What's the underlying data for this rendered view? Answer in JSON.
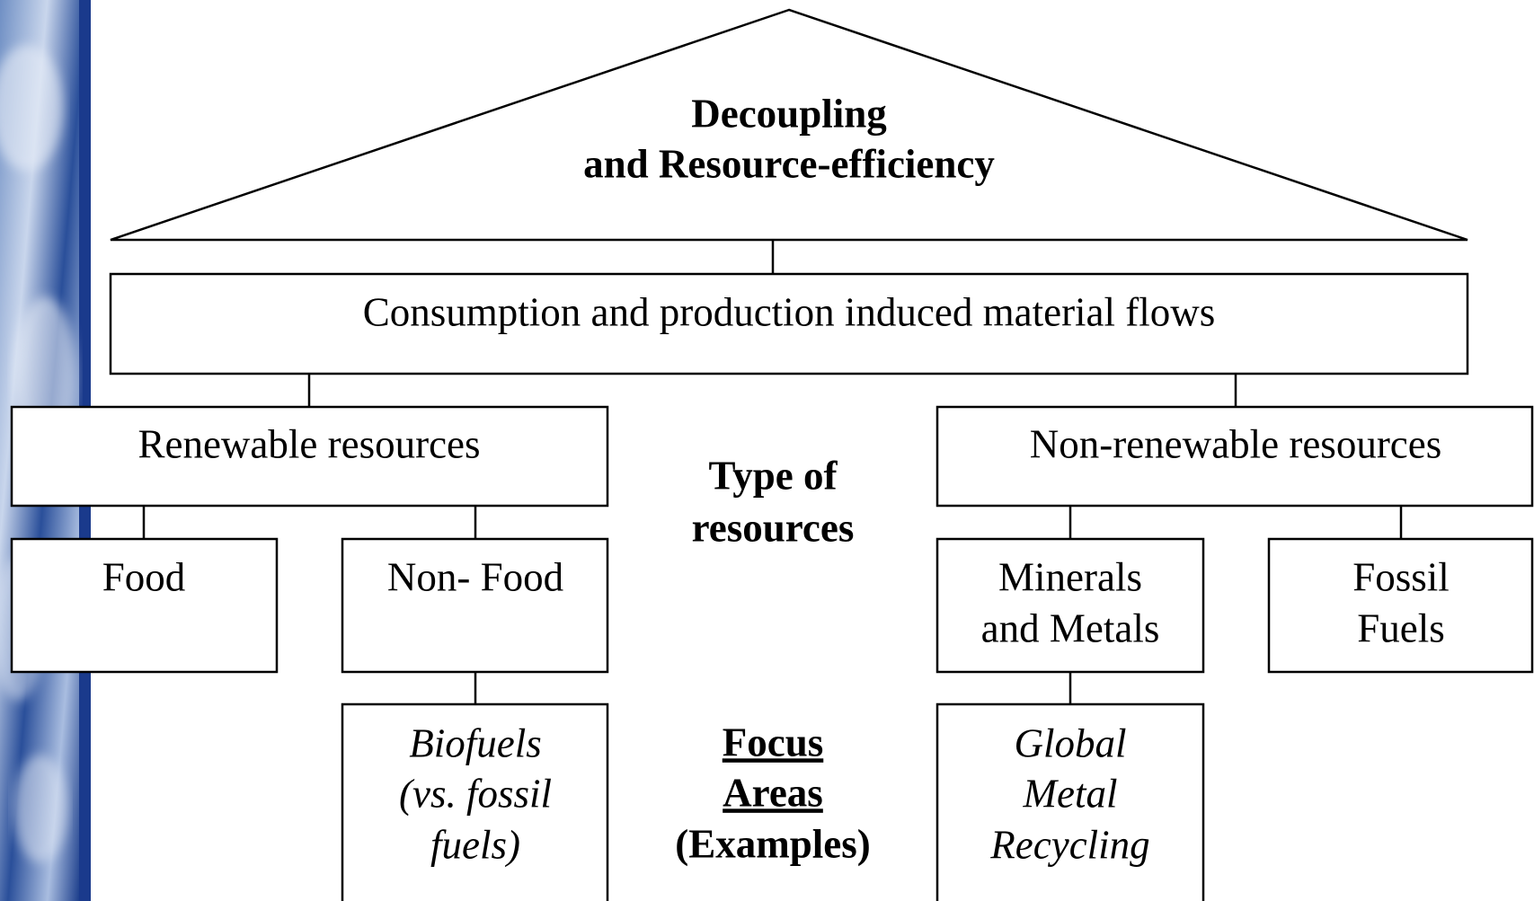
{
  "title": [
    "Decoupling",
    "and Resource-efficiency"
  ],
  "flows": "Consumption and production induced material flows",
  "resources": [
    {
      "label": "Renewable resources",
      "categories": [
        {
          "label": [
            "Food"
          ]
        },
        {
          "label": [
            "Non- Food"
          ],
          "focus": [
            "Biofuels",
            "(vs. fossil",
            "fuels)"
          ]
        }
      ]
    },
    {
      "label": "Non-renewable resources",
      "categories": [
        {
          "label": [
            "Minerals",
            "and Metals"
          ],
          "focus": [
            "Global",
            "Metal",
            "Recycling"
          ]
        },
        {
          "label": [
            "Fossil",
            "Fuels"
          ]
        }
      ]
    }
  ],
  "type_label": [
    "Type of",
    "resources"
  ],
  "focus_label": [
    "Focus",
    "Areas",
    "(Examples)"
  ]
}
